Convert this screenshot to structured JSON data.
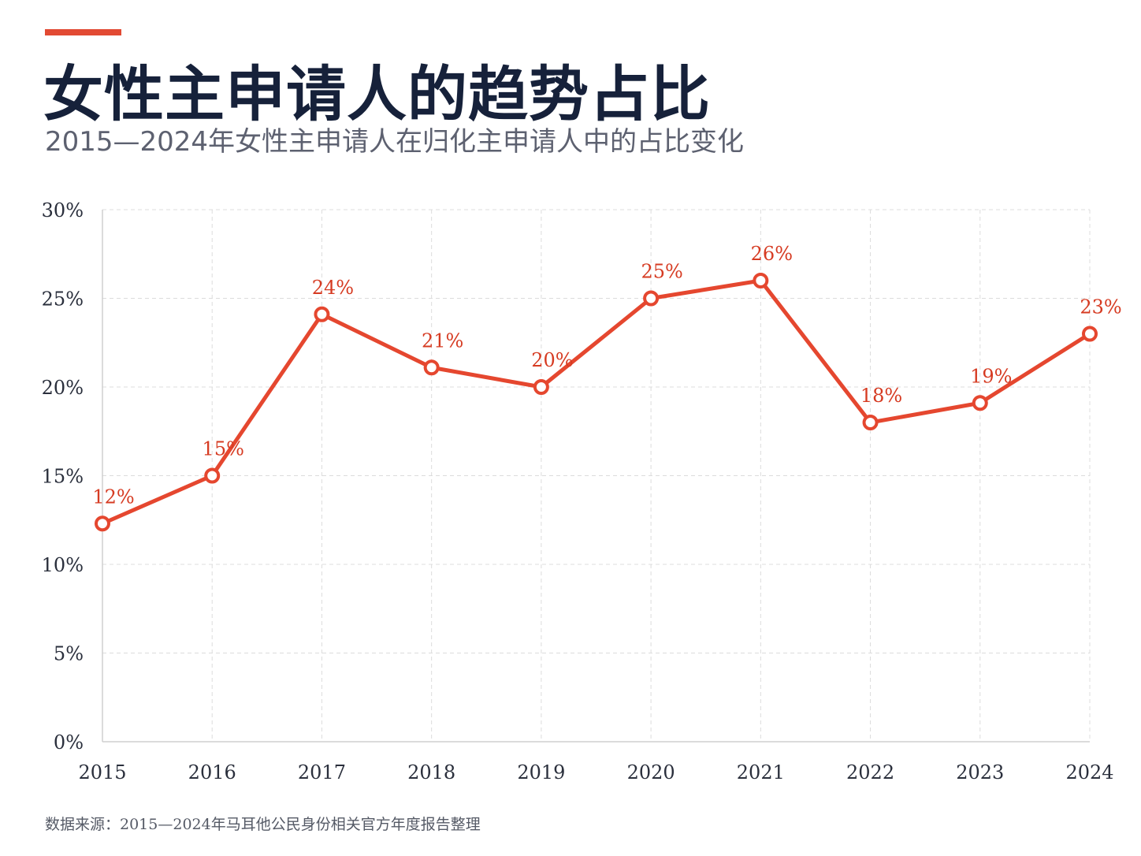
{
  "header": {
    "title": "女性主申请人的趋势占比",
    "subtitle": "2015—2024年女性主申请人在归化主申请人中的占比变化"
  },
  "footer": {
    "source": "数据来源：2015—2024年马耳他公民身份相关官方年度报告整理"
  },
  "colors": {
    "accent": "#e24a33",
    "line": "#e5472f",
    "label": "#d63b22",
    "title": "#16213a",
    "grid": "#dcdcdc"
  },
  "chart_data": {
    "type": "line",
    "title": "女性主申请人的趋势占比",
    "subtitle": "2015—2024年女性主申请人在归化主申请人中的占比变化",
    "xlabel": "",
    "ylabel": "",
    "categories": [
      "2015",
      "2016",
      "2017",
      "2018",
      "2019",
      "2020",
      "2021",
      "2022",
      "2023",
      "2024"
    ],
    "series": [
      {
        "values": [
          12.3,
          15.0,
          24.1,
          21.1,
          20.0,
          25.0,
          26.0,
          18.0,
          19.1,
          23.0
        ],
        "labels": [
          "12%",
          "15%",
          "24%",
          "21%",
          "20%",
          "25%",
          "26%",
          "18%",
          "19%",
          "23%"
        ]
      }
    ],
    "ylim": [
      0,
      30
    ],
    "yticks": [
      0,
      5,
      10,
      15,
      20,
      25,
      30
    ],
    "ytick_labels": [
      "0%",
      "5%",
      "10%",
      "15%",
      "20%",
      "25%",
      "30%"
    ],
    "grid": true,
    "legend": "none"
  }
}
